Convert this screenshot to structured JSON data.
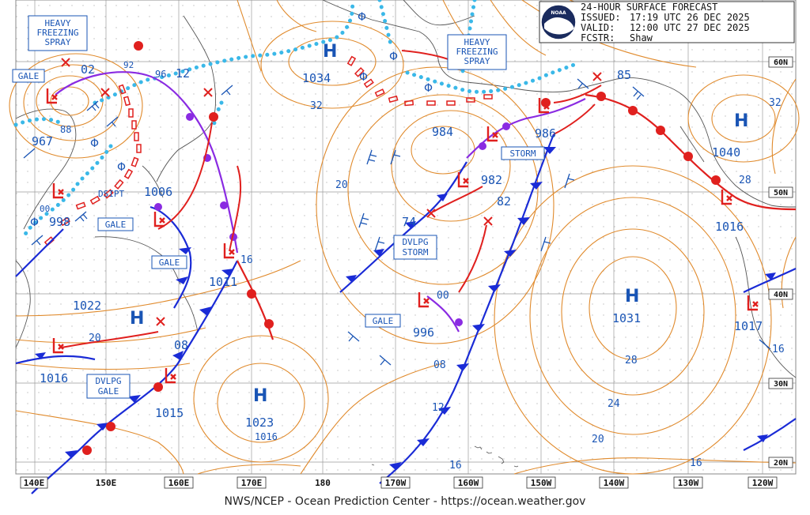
{
  "header": {
    "title": "24-HOUR SURFACE FORECAST",
    "issued_label": "ISSUED:",
    "issued": "17:19 UTC 26 DEC 2025",
    "valid_label": "VALID:",
    "valid": "12:00 UTC 27 DEC 2025",
    "fcstr_label": "FCSTR:",
    "fcstr": "Shaw",
    "logo_text": "NOAA"
  },
  "footer": "NWS/NCEP - Ocean Prediction Center - https://ocean.weather.gov",
  "colors": {
    "isobar": "#e08a2c",
    "high_low_blue": "#1a55b5",
    "low_symbol": "#e0201e",
    "cold_front": "#1a2bd6",
    "warm_front": "#e0201e",
    "occluded_front": "#8a2be2",
    "freezing_spray": "#3ab8e8",
    "ice_edge": "#e0201e"
  },
  "lon_labels": [
    "140E",
    "150E",
    "160E",
    "170E",
    "180",
    "170W",
    "160W",
    "150W",
    "140W",
    "130W",
    "120W"
  ],
  "lat_labels": [
    "60N",
    "50N",
    "40N",
    "30N",
    "20N"
  ],
  "highs": [
    {
      "symbol": "H",
      "value": "1034"
    },
    {
      "symbol": "H",
      "value": "1023"
    },
    {
      "symbol": "H",
      "value": "1022"
    },
    {
      "symbol": "H",
      "value": "1031"
    },
    {
      "symbol": "H",
      "value": "1040"
    }
  ],
  "lows": [
    {
      "value": "967"
    },
    {
      "value": "998"
    },
    {
      "value": "1006"
    },
    {
      "value": "1011"
    },
    {
      "value": "1016"
    },
    {
      "value": "1015"
    },
    {
      "value": "984"
    },
    {
      "value": "986"
    },
    {
      "value": "982"
    },
    {
      "value": "996"
    },
    {
      "value": "1016"
    },
    {
      "value": "1017"
    }
  ],
  "warnings": {
    "heavy_spray_w": "HEAVY\nFREEZING\nSPRAY",
    "heavy_spray_e": "HEAVY\nFREEZING\nSPRAY",
    "gale_1": "GALE",
    "gale_2": "GALE",
    "gale_3": "GALE",
    "gale_4": "GALE",
    "storm": "STORM",
    "dvlpg_storm": "DVLPG\nSTORM",
    "dvlpg_gale": "DVLPG\nGALE",
    "dsipt": "DSIPT"
  },
  "isobar_labels": [
    "02",
    "92",
    "96",
    "12",
    "88",
    "00",
    "32",
    "20",
    "74",
    "82",
    "85",
    "16",
    "08",
    "20",
    "08",
    "12",
    "28",
    "24",
    "20",
    "16",
    "16",
    "32",
    "28",
    "16",
    "00",
    "1016"
  ]
}
